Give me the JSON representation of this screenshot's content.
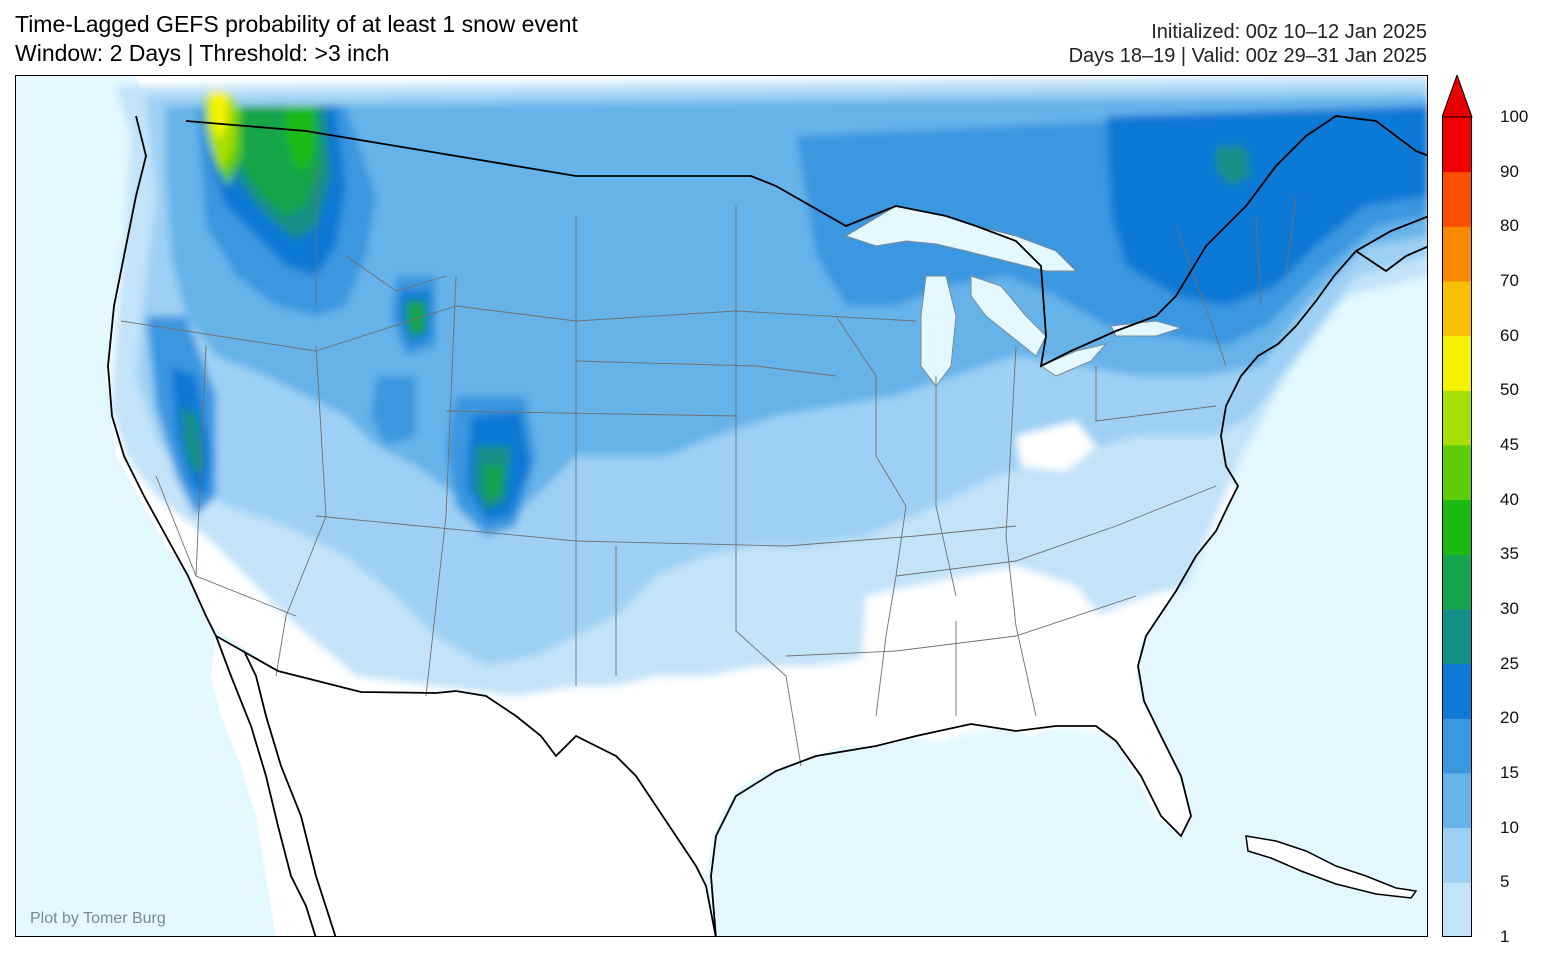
{
  "header": {
    "title_line1": "Time-Lagged GEFS probability of at least 1 snow event",
    "title_line2": "Window: 2 Days | Threshold: >3 inch",
    "init_text": "Initialized: 00z 10–12 Jan 2025",
    "valid_text": "Days 18–19 | Valid: 00z 29–31 Jan 2025"
  },
  "credit": "Plot by Tomer Burg",
  "colorbar": {
    "levels": [
      "1",
      "5",
      "10",
      "15",
      "20",
      "25",
      "30",
      "35",
      "40",
      "45",
      "50",
      "60",
      "70",
      "80",
      "90",
      "100"
    ],
    "colors": [
      "#c3e3f9",
      "#9dd0f4",
      "#66b3ea",
      "#3a97e0",
      "#0f79d6",
      "#128f87",
      "#15a54a",
      "#1bba12",
      "#5ecc0a",
      "#a6de06",
      "#f5f300",
      "#f8c000",
      "#fa8a00",
      "#fc4f00",
      "#f00000"
    ],
    "extend_color": "#e60000"
  },
  "map": {
    "region": "Contiguous United States",
    "ocean_color": "#e3f8ff",
    "land_color": "#ffffff",
    "snow_regions": [
      {
        "name": "Pacific Northwest",
        "level": "50"
      },
      {
        "name": "Northern Rockies",
        "level": "40"
      },
      {
        "name": "Colorado Rockies",
        "level": "30"
      },
      {
        "name": "Sierra Nevada",
        "level": "30"
      },
      {
        "name": "Great Lakes",
        "level": "15"
      },
      {
        "name": "Quebec / New England",
        "level": "25"
      },
      {
        "name": "Central Plains",
        "level": "10"
      },
      {
        "name": "Southeast",
        "level": "1"
      }
    ]
  }
}
